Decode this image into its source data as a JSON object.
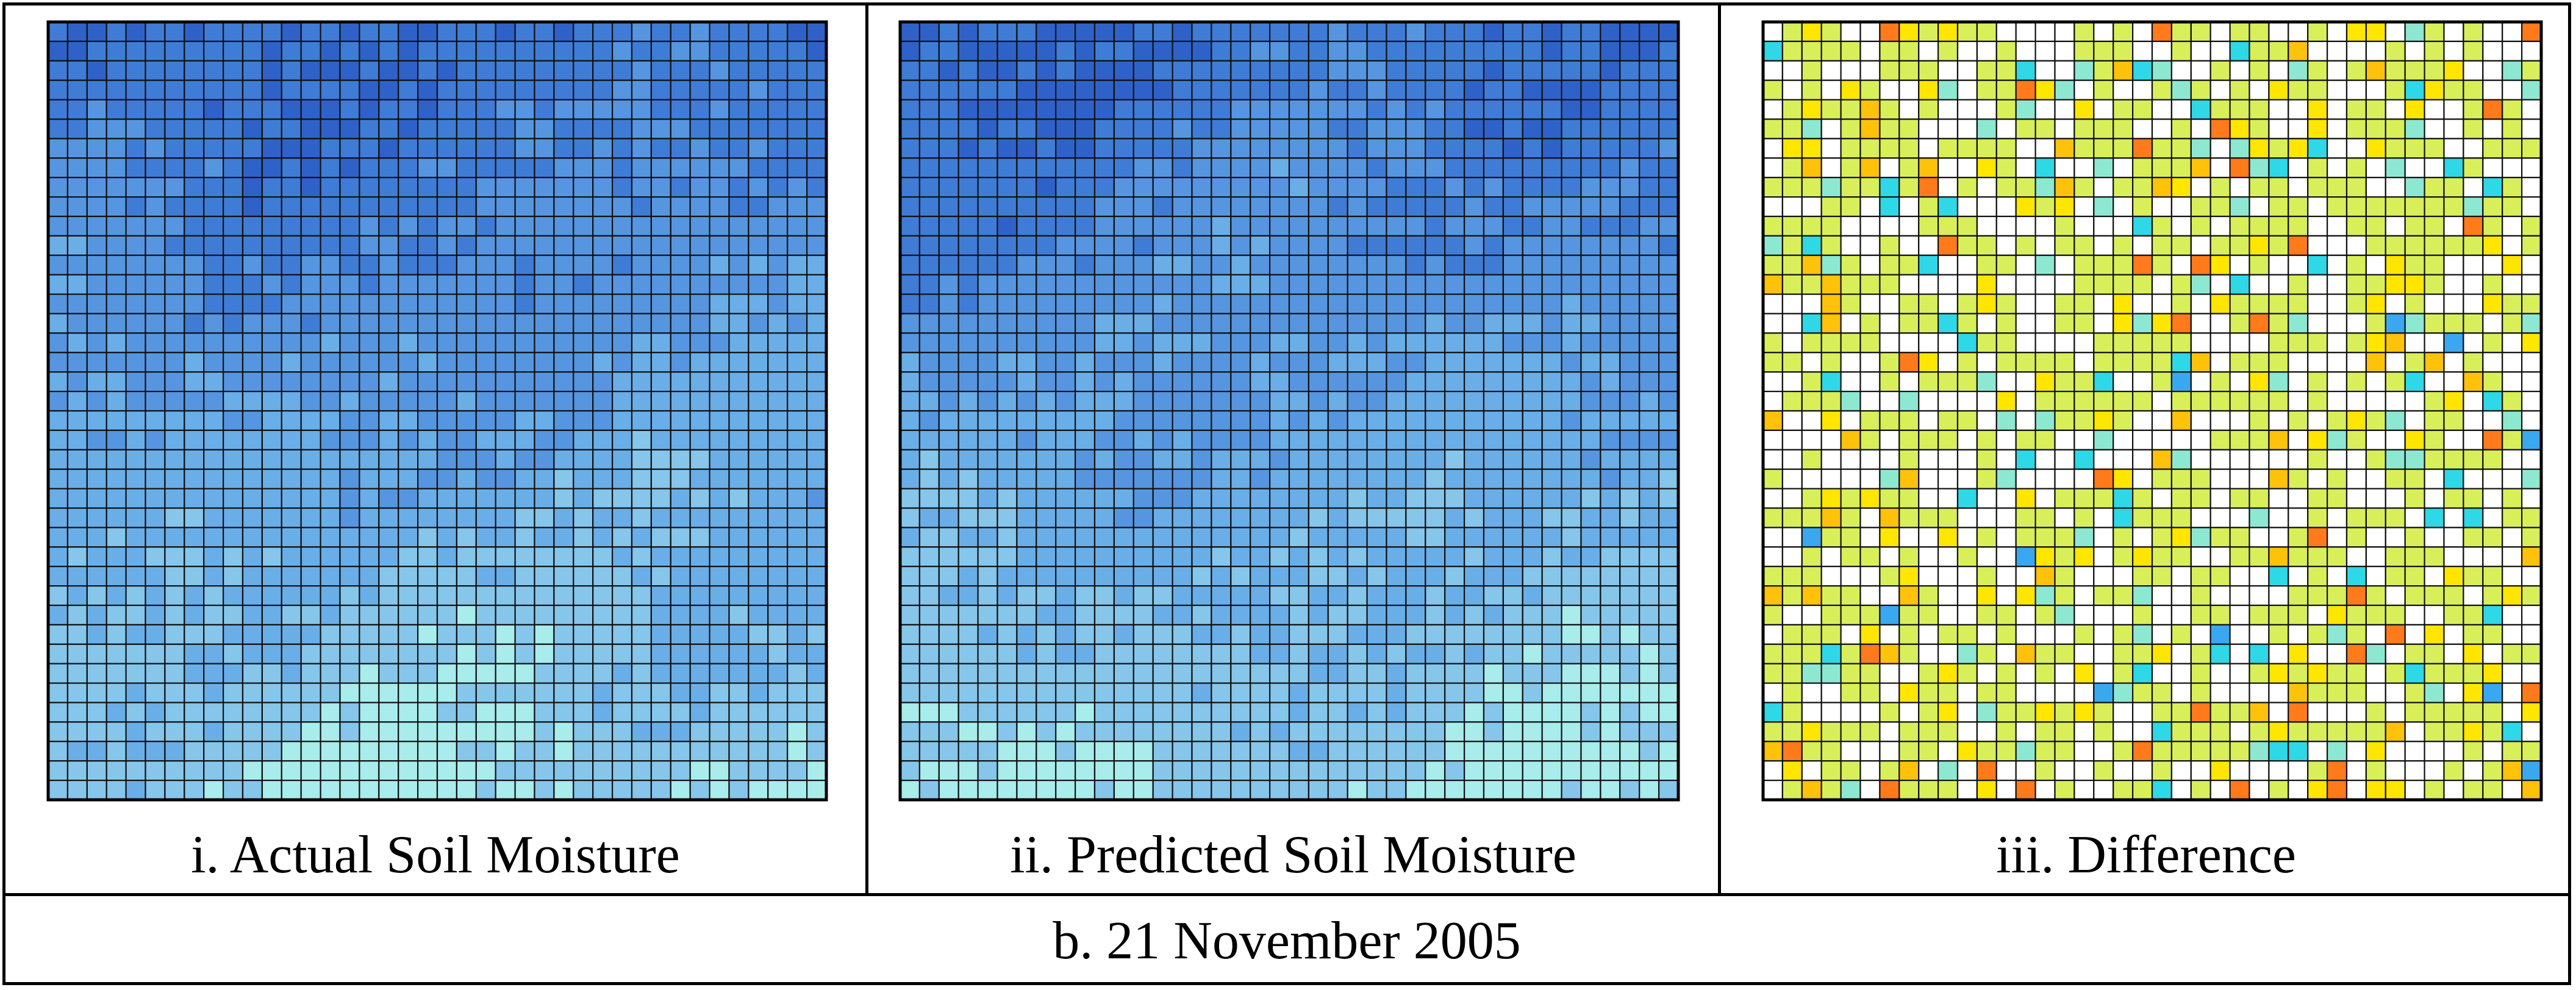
{
  "chart_data": [
    {
      "type": "heatmap",
      "caption": "i. Actual Soil Moisture",
      "grid": {
        "rows": 40,
        "cols": 40
      },
      "colors": [
        "#a8ecec",
        "#86c6ea",
        "#6aaee8",
        "#5696e0",
        "#3f7cd6",
        "#2f62c8"
      ],
      "title": "",
      "xlabel": "",
      "ylabel": ""
    },
    {
      "type": "heatmap",
      "caption": "ii. Predicted Soil Moisture",
      "grid": {
        "rows": 40,
        "cols": 40
      },
      "colors": [
        "#a8ecec",
        "#86c6ea",
        "#6aaee8",
        "#5696e0",
        "#3f7cd6",
        "#2f62c8"
      ],
      "title": "",
      "xlabel": "",
      "ylabel": ""
    },
    {
      "type": "heatmap",
      "caption": "iii. Difference",
      "grid": {
        "rows": 40,
        "cols": 40
      },
      "colors": [
        "#ffffff",
        "#d9ef5a",
        "#ffe600",
        "#ffc20a",
        "#ff7a1a",
        "#8de8d2",
        "#2ed8e6",
        "#3aa8f0"
      ],
      "title": "",
      "xlabel": "",
      "ylabel": ""
    }
  ],
  "footer": {
    "caption": "b. 21 November 2005"
  }
}
